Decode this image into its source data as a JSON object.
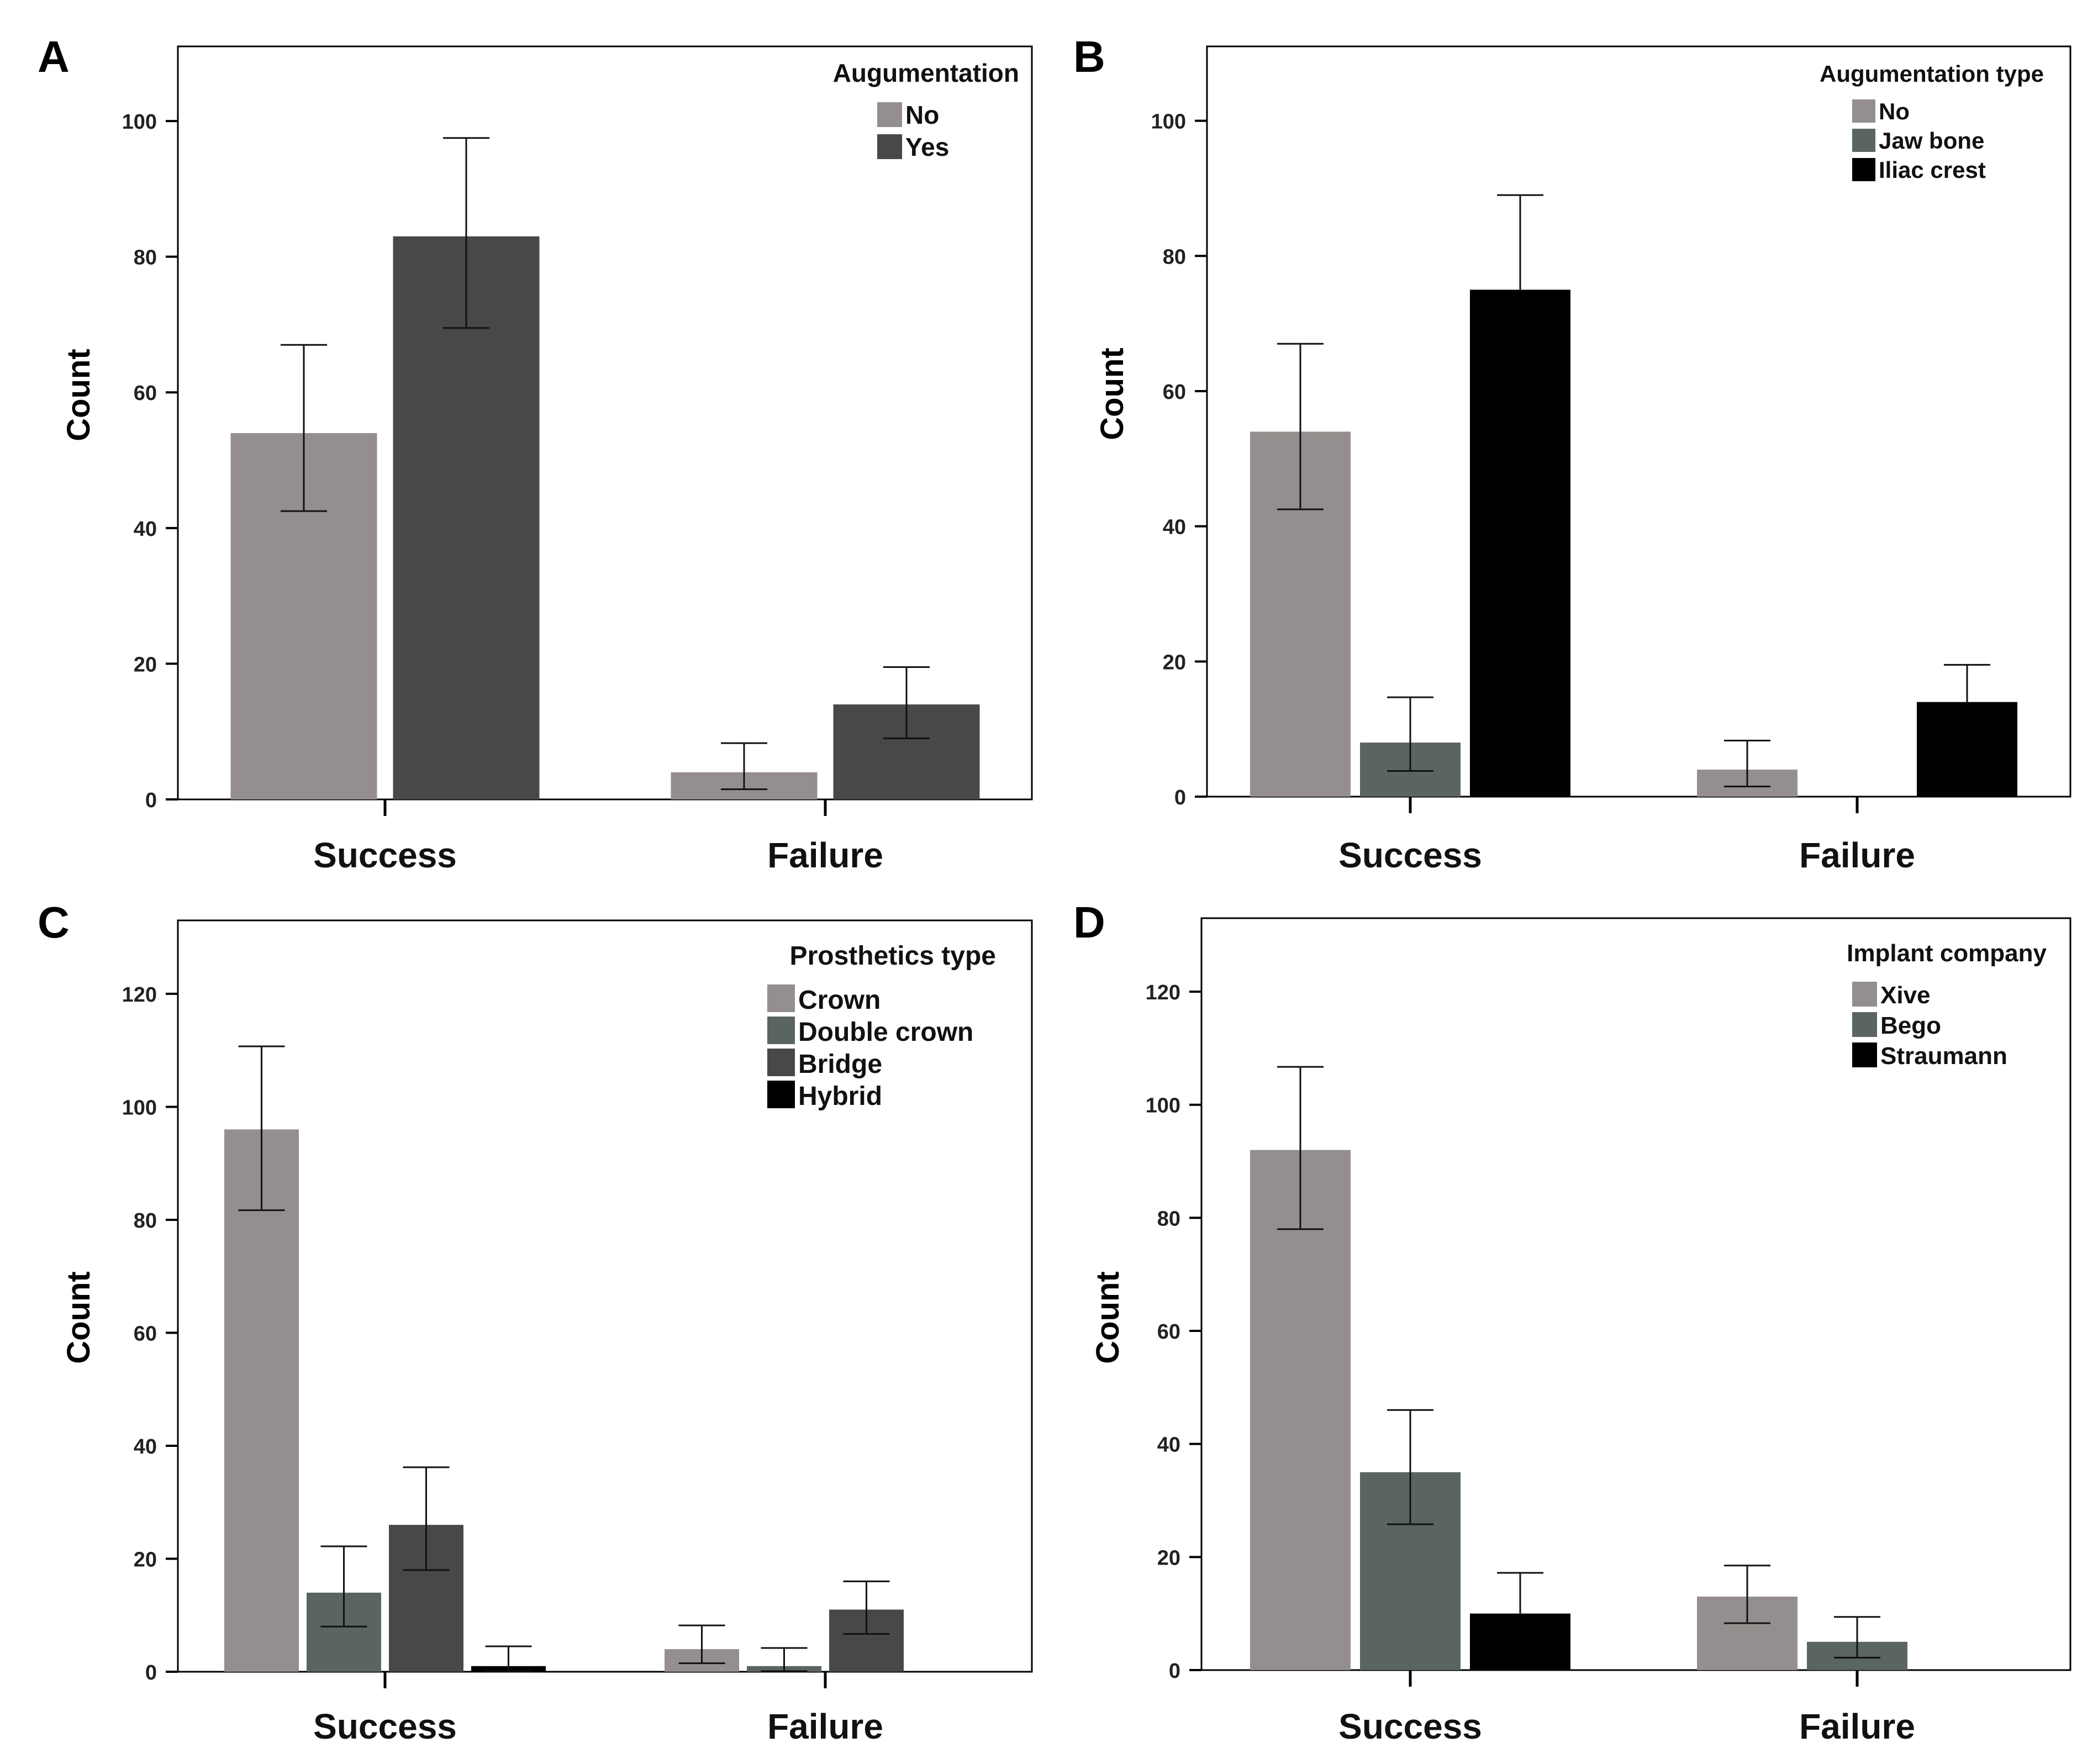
{
  "figure": {
    "panels": [
      "A",
      "B",
      "C",
      "D"
    ]
  },
  "colors": {
    "gray": "#948f8e",
    "green_gray": "#5a6460",
    "dark_gray": "#474849",
    "black": "#000000",
    "axis": "#000000",
    "background": "#ffffff"
  },
  "chart_data": [
    {
      "panel": "A",
      "type": "bar",
      "categories": [
        "Success",
        "Failure"
      ],
      "ylabel": "Count",
      "xlabel": "",
      "ylim": [
        0,
        111
      ],
      "yticks": [
        0,
        20,
        40,
        60,
        80,
        100
      ],
      "grid": false,
      "legend": {
        "title": "Augumentation",
        "placement": "top-right"
      },
      "series": [
        {
          "name": "No",
          "color": "#948f8e",
          "values": [
            54,
            4
          ],
          "err_low": [
            42.5,
            1.5
          ],
          "err_high": [
            67,
            8.3
          ]
        },
        {
          "name": "Yes",
          "color": "#474849",
          "values": [
            83,
            14
          ],
          "err_low": [
            69.5,
            9
          ],
          "err_high": [
            97.5,
            19.5
          ]
        }
      ]
    },
    {
      "panel": "B",
      "type": "bar",
      "categories": [
        "Success",
        "Failure"
      ],
      "ylabel": "Count",
      "xlabel": "",
      "ylim": [
        0,
        111
      ],
      "yticks": [
        0,
        20,
        40,
        60,
        80,
        100
      ],
      "grid": false,
      "legend": {
        "title": "Augumentation type",
        "placement": "top-right"
      },
      "series": [
        {
          "name": "No",
          "color": "#948f8e",
          "values": [
            54,
            4
          ],
          "err_low": [
            42.5,
            1.5
          ],
          "err_high": [
            67,
            8.3
          ]
        },
        {
          "name": "Jaw bone",
          "color": "#5a6460",
          "values": [
            8,
            0
          ],
          "err_low": [
            3.8,
            null
          ],
          "err_high": [
            14.7,
            null
          ]
        },
        {
          "name": "Iliac crest",
          "color": "#000000",
          "values": [
            75,
            14
          ],
          "err_low": [
            null,
            null
          ],
          "err_high": [
            89,
            19.5
          ]
        }
      ]
    },
    {
      "panel": "C",
      "type": "bar",
      "categories": [
        "Success",
        "Failure"
      ],
      "ylabel": "Count",
      "xlabel": "",
      "ylim": [
        0,
        133
      ],
      "yticks": [
        0,
        20,
        40,
        60,
        80,
        100,
        120
      ],
      "grid": false,
      "legend": {
        "title": "Prosthetics type",
        "placement": "top-right"
      },
      "series": [
        {
          "name": "Crown",
          "color": "#948f8e",
          "values": [
            96,
            4
          ],
          "err_low": [
            81.7,
            1.5
          ],
          "err_high": [
            110.7,
            8.2
          ]
        },
        {
          "name": "Double crown",
          "color": "#5a6460",
          "values": [
            14,
            1
          ],
          "err_low": [
            8,
            0.1
          ],
          "err_high": [
            22.2,
            4.2
          ]
        },
        {
          "name": "Bridge",
          "color": "#474849",
          "values": [
            26,
            11
          ],
          "err_low": [
            18,
            6.7
          ],
          "err_high": [
            36.2,
            16
          ]
        },
        {
          "name": "Hybrid",
          "color": "#000000",
          "values": [
            1,
            0
          ],
          "err_low": [
            0.1,
            null
          ],
          "err_high": [
            4.5,
            null
          ]
        }
      ]
    },
    {
      "panel": "D",
      "type": "bar",
      "categories": [
        "Success",
        "Failure"
      ],
      "ylabel": "Count",
      "xlabel": "",
      "ylim": [
        0,
        133
      ],
      "yticks": [
        0,
        20,
        40,
        60,
        80,
        100,
        120
      ],
      "grid": false,
      "legend": {
        "title": "Implant company",
        "placement": "top-right"
      },
      "series": [
        {
          "name": "Xive",
          "color": "#948f8e",
          "values": [
            92,
            13
          ],
          "err_low": [
            78,
            8.3
          ],
          "err_high": [
            106.7,
            18.5
          ]
        },
        {
          "name": "Bego",
          "color": "#5a6460",
          "values": [
            35,
            5
          ],
          "err_low": [
            25.8,
            2.2
          ],
          "err_high": [
            46,
            9.4
          ]
        },
        {
          "name": "Straumann",
          "color": "#000000",
          "values": [
            10,
            0
          ],
          "err_low": [
            null,
            null
          ],
          "err_high": [
            17.2,
            null
          ]
        }
      ]
    }
  ]
}
